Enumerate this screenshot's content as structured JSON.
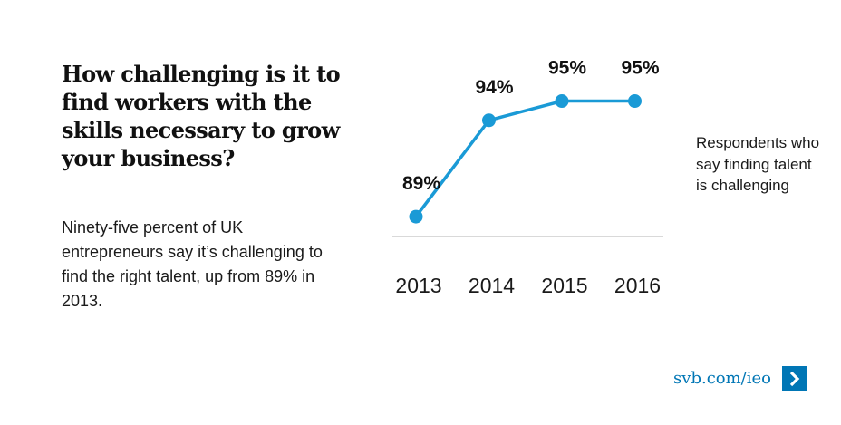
{
  "headline": "How challenging is it to find workers with the skills necessary to grow your business?",
  "description": "Ninety-five percent of UK entrepreneurs say it’s challenging to find the right talent, up from 89% in 2013.",
  "footer": {
    "link_text": "svb.com/ieo",
    "icon": "chevron-right-icon"
  },
  "colors": {
    "series": "#1a9ad6",
    "link": "#0076b5",
    "grid": "#d9d9d9"
  },
  "chart_data": {
    "type": "line",
    "x": [
      "2013",
      "2014",
      "2015",
      "2016"
    ],
    "series": [
      {
        "name": "Respondents who say finding talent is challenging",
        "values": [
          89,
          94,
          95,
          95
        ],
        "labels": [
          "89%",
          "94%",
          "95%",
          "95%"
        ]
      }
    ],
    "ylim": [
      87.5,
      96.2
    ],
    "gridlines": [
      88,
      92,
      96
    ],
    "grid": true,
    "legend": "right"
  }
}
